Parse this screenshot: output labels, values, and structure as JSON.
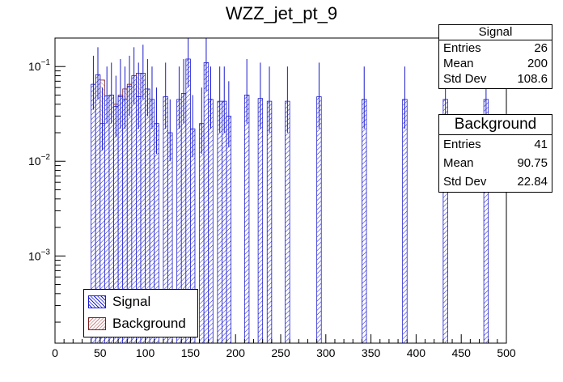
{
  "chart_data": {
    "type": "bar",
    "title": "WZZ_jet_pt_9",
    "xlabel": "",
    "ylabel": "",
    "xlim": [
      0,
      500
    ],
    "ylim": [
      0.00012,
      0.2
    ],
    "y_scale": "log",
    "x_ticks": [
      0,
      50,
      100,
      150,
      200,
      250,
      300,
      350,
      400,
      450,
      500
    ],
    "y_ticks": [
      {
        "value": 0.1,
        "mantissa": "10",
        "exp": "−1"
      },
      {
        "value": 0.01,
        "mantissa": "10",
        "exp": "−2"
      },
      {
        "value": 0.001,
        "mantissa": "10",
        "exp": "−3"
      }
    ],
    "bin_width": 5,
    "series": [
      {
        "name": "Background",
        "color": "#7a1f1f",
        "fill": "#c98888",
        "bins": [
          {
            "x": 45,
            "y": 0.08
          },
          {
            "x": 50,
            "y": 0.072
          },
          {
            "x": 55,
            "y": 0.048
          },
          {
            "x": 60,
            "y": 0.05
          },
          {
            "x": 65,
            "y": 0.04
          },
          {
            "x": 70,
            "y": 0.05
          },
          {
            "x": 75,
            "y": 0.058
          },
          {
            "x": 80,
            "y": 0.065
          },
          {
            "x": 85,
            "y": 0.076
          },
          {
            "x": 90,
            "y": 0.085
          },
          {
            "x": 95,
            "y": 0.065
          },
          {
            "x": 100,
            "y": 0.032
          }
        ]
      },
      {
        "name": "Signal",
        "color": "#1b1bcc",
        "bins": [
          {
            "x": 40,
            "y": 0.065,
            "up": 0.13,
            "down": 0.035
          },
          {
            "x": 45,
            "y": 0.082,
            "up": 0.16,
            "down": 0.045
          },
          {
            "x": 50,
            "y": 0.025,
            "up": 0.06,
            "down": 0.013
          },
          {
            "x": 55,
            "y": 0.049,
            "up": 0.1,
            "down": 0.025
          },
          {
            "x": 60,
            "y": 0.05,
            "up": 0.11,
            "down": 0.025
          },
          {
            "x": 65,
            "y": 0.038,
            "up": 0.08,
            "down": 0.018
          },
          {
            "x": 70,
            "y": 0.048,
            "up": 0.12,
            "down": 0.022
          },
          {
            "x": 75,
            "y": 0.045,
            "up": 0.1,
            "down": 0.022
          },
          {
            "x": 80,
            "y": 0.062,
            "up": 0.13,
            "down": 0.03
          },
          {
            "x": 85,
            "y": 0.08,
            "up": 0.16,
            "down": 0.04
          },
          {
            "x": 90,
            "y": 0.048,
            "up": 0.11,
            "down": 0.022
          },
          {
            "x": 95,
            "y": 0.085,
            "up": 0.17,
            "down": 0.045
          },
          {
            "x": 100,
            "y": 0.058,
            "up": 0.12,
            "down": 0.03
          },
          {
            "x": 105,
            "y": 0.045,
            "up": 0.1,
            "down": 0.022
          },
          {
            "x": 110,
            "y": 0.025,
            "up": 0.06,
            "down": 0.012
          },
          {
            "x": 120,
            "y": 0.048,
            "up": 0.11,
            "down": 0.022
          },
          {
            "x": 125,
            "y": 0.02,
            "up": 0.045,
            "down": 0.01
          },
          {
            "x": 135,
            "y": 0.045,
            "up": 0.1,
            "down": 0.022
          },
          {
            "x": 140,
            "y": 0.052,
            "up": 0.12,
            "down": 0.025
          },
          {
            "x": 145,
            "y": 0.12,
            "up": 0.2,
            "down": 0.06
          },
          {
            "x": 150,
            "y": 0.022,
            "up": 0.05,
            "down": 0.011
          },
          {
            "x": 160,
            "y": 0.025,
            "up": 0.06,
            "down": 0.012
          },
          {
            "x": 165,
            "y": 0.11,
            "up": 0.2,
            "down": 0.055
          },
          {
            "x": 170,
            "y": 0.045,
            "up": 0.1,
            "down": 0.022
          },
          {
            "x": 180,
            "y": 0.043,
            "up": 0.1,
            "down": 0.02
          },
          {
            "x": 185,
            "y": 0.043,
            "up": 0.1,
            "down": 0.02
          },
          {
            "x": 190,
            "y": 0.03,
            "up": 0.07,
            "down": 0.014
          },
          {
            "x": 210,
            "y": 0.05,
            "up": 0.12,
            "down": 0.025
          },
          {
            "x": 225,
            "y": 0.046,
            "up": 0.11,
            "down": 0.022
          },
          {
            "x": 235,
            "y": 0.043,
            "up": 0.1,
            "down": 0.02
          },
          {
            "x": 255,
            "y": 0.043,
            "up": 0.1,
            "down": 0.02
          },
          {
            "x": 290,
            "y": 0.048,
            "up": 0.11,
            "down": 0.022
          },
          {
            "x": 340,
            "y": 0.045,
            "up": 0.1,
            "down": 0.022
          },
          {
            "x": 385,
            "y": 0.045,
            "up": 0.1,
            "down": 0.022
          },
          {
            "x": 430,
            "y": 0.045,
            "up": 0.1,
            "down": 0.022
          },
          {
            "x": 475,
            "y": 0.045,
            "up": 0.1,
            "down": 0.022
          }
        ]
      }
    ],
    "legend": {
      "position": "bottom-left",
      "entries": [
        "Signal",
        "Background"
      ]
    }
  },
  "stats": {
    "signal": {
      "name": "Signal",
      "entries_label": "Entries",
      "entries": "26",
      "mean_label": "Mean",
      "mean": "200",
      "std_label": "Std Dev",
      "std": "108.6"
    },
    "background": {
      "name": "Background",
      "entries_label": "Entries",
      "entries": "41",
      "mean_label": "Mean",
      "mean": "90.75",
      "std_label": "Std Dev",
      "std": "22.84"
    }
  }
}
